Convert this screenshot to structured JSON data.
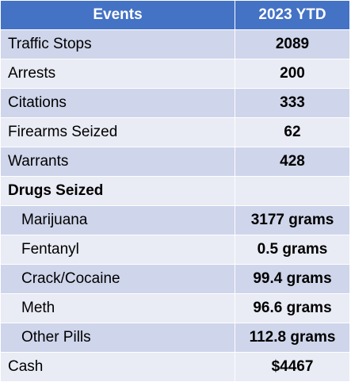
{
  "table": {
    "headers": [
      "Events",
      "2023 YTD"
    ],
    "rows": [
      {
        "label": "Traffic Stops",
        "value": "2089"
      },
      {
        "label": "Arrests",
        "value": "200"
      },
      {
        "label": "Citations",
        "value": "333"
      },
      {
        "label": "Firearms Seized",
        "value": "62"
      },
      {
        "label": "Warrants",
        "value": "428"
      },
      {
        "label": "Drugs Seized",
        "value": ""
      },
      {
        "label": "Marijuana",
        "value": "3177 grams"
      },
      {
        "label": "Fentanyl",
        "value": "0.5 grams"
      },
      {
        "label": "Crack/Cocaine",
        "value": "99.4 grams"
      },
      {
        "label": "Meth",
        "value": "96.6 grams"
      },
      {
        "label": "Other Pills",
        "value": "112.8 grams"
      },
      {
        "label": "Cash",
        "value": "$4467"
      }
    ]
  },
  "colors": {
    "header_background": "#4472c4",
    "row_band_dark": "#cfd5ea",
    "row_band_light": "#e9ebf5"
  }
}
